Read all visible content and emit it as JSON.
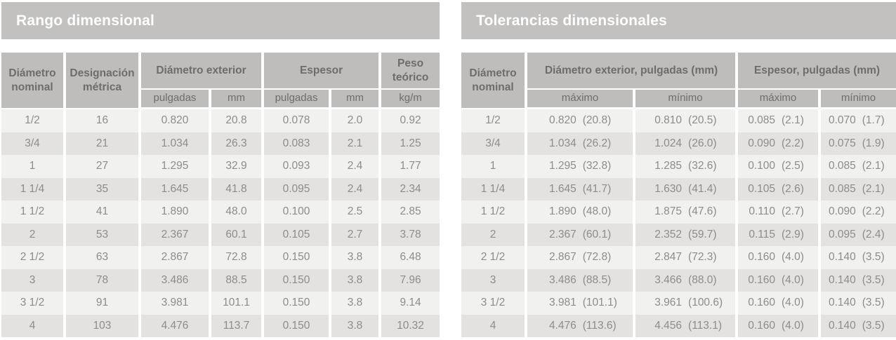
{
  "colors": {
    "title_bar_bg": "#c2c1bf",
    "title_text": "#ffffff",
    "header_bg": "#bebdbb",
    "header_text": "#6e6d6b",
    "row_odd_bg": "#f1f1ef",
    "row_even_bg": "#e3e2e0",
    "body_text": "#8d8c8a"
  },
  "left_table": {
    "title": "Rango dimensional",
    "headers": {
      "diametro_nominal": "Diámetro nominal",
      "designacion_metrica": "Designación métrica",
      "diametro_exterior": "Diámetro exterior",
      "espesor": "Espesor",
      "peso_teorico": "Peso teórico",
      "sub": [
        "pulgadas",
        "mm",
        "pulgadas",
        "mm",
        "kg/m"
      ]
    },
    "rows": [
      [
        "1/2",
        "16",
        "0.820",
        "20.8",
        "0.078",
        "2.0",
        "0.92"
      ],
      [
        "3/4",
        "21",
        "1.034",
        "26.3",
        "0.083",
        "2.1",
        "1.25"
      ],
      [
        "1",
        "27",
        "1.295",
        "32.9",
        "0.093",
        "2.4",
        "1.77"
      ],
      [
        "1 1/4",
        "35",
        "1.645",
        "41.8",
        "0.095",
        "2.4",
        "2.34"
      ],
      [
        "1 1/2",
        "41",
        "1.890",
        "48.0",
        "0.100",
        "2.5",
        "2.85"
      ],
      [
        "2",
        "53",
        "2.367",
        "60.1",
        "0.105",
        "2.7",
        "3.78"
      ],
      [
        "2 1/2",
        "63",
        "2.867",
        "72.8",
        "0.150",
        "3.8",
        "6.48"
      ],
      [
        "3",
        "78",
        "3.486",
        "88.5",
        "0.150",
        "3.8",
        "7.96"
      ],
      [
        "3 1/2",
        "91",
        "3.981",
        "101.1",
        "0.150",
        "3.8",
        "9.14"
      ],
      [
        "4",
        "103",
        "4.476",
        "113.7",
        "0.150",
        "3.8",
        "10.32"
      ]
    ]
  },
  "right_table": {
    "title": "Tolerancias dimensionales",
    "headers": {
      "diametro_nominal": "Diámetro nominal",
      "diametro_exterior": "Diámetro exterior, pulgadas (mm)",
      "espesor": "Espesor, pulgadas (mm)",
      "sub": [
        "máximo",
        "mínimo",
        "máximo",
        "mínimo"
      ]
    },
    "rows": [
      [
        "1/2",
        [
          "0.820",
          "(20.8)"
        ],
        [
          "0.810",
          "(20.5)"
        ],
        [
          "0.085",
          "(2.1)"
        ],
        [
          "0.070",
          "(1.7)"
        ]
      ],
      [
        "3/4",
        [
          "1.034",
          "(26.2)"
        ],
        [
          "1.024",
          "(26.0)"
        ],
        [
          "0.090",
          "(2.2)"
        ],
        [
          "0.075",
          "(1.9)"
        ]
      ],
      [
        "1",
        [
          "1.295",
          "(32.8)"
        ],
        [
          "1.285",
          "(32.6)"
        ],
        [
          "0.100",
          "(2.5)"
        ],
        [
          "0.085",
          "(2.1)"
        ]
      ],
      [
        "1 1/4",
        [
          "1.645",
          "(41.7)"
        ],
        [
          "1.630",
          "(41.4)"
        ],
        [
          "0.105",
          "(2.6)"
        ],
        [
          "0.085",
          "(2.1)"
        ]
      ],
      [
        "1 1/2",
        [
          "1.890",
          "(48.0)"
        ],
        [
          "1.875",
          "(47.6)"
        ],
        [
          "0.110",
          "(2.7)"
        ],
        [
          "0.090",
          "(2.2)"
        ]
      ],
      [
        "2",
        [
          "2.367",
          "(60.1)"
        ],
        [
          "2.352",
          "(59.7)"
        ],
        [
          "0.115",
          "(2.9)"
        ],
        [
          "0.095",
          "(2.4)"
        ]
      ],
      [
        "2 1/2",
        [
          "2.867",
          "(72.8)"
        ],
        [
          "2.847",
          "(72.3)"
        ],
        [
          "0.160",
          "(4.0)"
        ],
        [
          "0.140",
          "(3.5)"
        ]
      ],
      [
        "3",
        [
          "3.486",
          "(88.5)"
        ],
        [
          "3.466",
          "(88.0)"
        ],
        [
          "0.160",
          "(4.0)"
        ],
        [
          "0.140",
          "(3.5)"
        ]
      ],
      [
        "3 1/2",
        [
          "3.981",
          "(101.1)"
        ],
        [
          "3.961",
          "(100.6)"
        ],
        [
          "0.160",
          "(4.0)"
        ],
        [
          "0.140",
          "(3.5)"
        ]
      ],
      [
        "4",
        [
          "4.476",
          "(113.6)"
        ],
        [
          "4.456",
          "(113.1)"
        ],
        [
          "0.160",
          "(4.0)"
        ],
        [
          "0.140",
          "(3.5)"
        ]
      ]
    ]
  }
}
